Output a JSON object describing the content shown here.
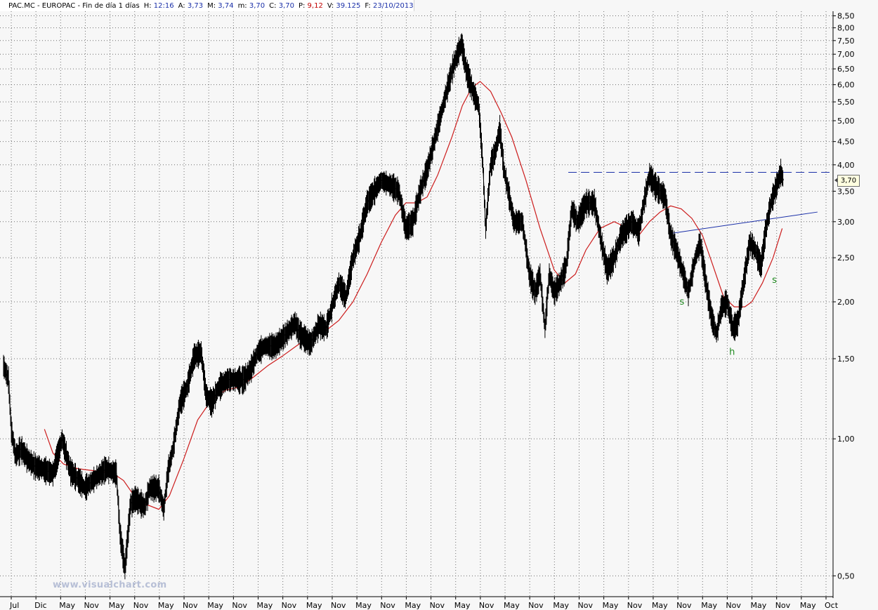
{
  "header": {
    "symbol": "PAC.MC - EUROPAC - Fin de día 1 días",
    "fields": [
      {
        "label": "H:",
        "value": "12:16",
        "color": "blue"
      },
      {
        "label": "A:",
        "value": "3,73",
        "color": "blue"
      },
      {
        "label": "M:",
        "value": "3,74",
        "color": "blue"
      },
      {
        "label": "m:",
        "value": "3,70",
        "color": "blue"
      },
      {
        "label": "C:",
        "value": "3,70",
        "color": "blue"
      },
      {
        "label": "P:",
        "value": "9,12",
        "color": "red"
      },
      {
        "label": "V:",
        "value": "39.125",
        "color": "blue"
      },
      {
        "label": "F:",
        "value": "23/10/2013",
        "color": "blue"
      }
    ]
  },
  "watermark": "www.visualchart.com",
  "last_price_label": "3,70",
  "colors": {
    "price": "#000000",
    "moving_average": "#cc1c1c",
    "resistance_line": "#1a2fa8",
    "neckline": "#1a2fa8",
    "pattern_labels": "#1f8a1f",
    "grid": "#6f6f6f"
  },
  "chart_data": {
    "type": "line",
    "log_scale": true,
    "grid": true,
    "ylim": [
      0.45,
      8.7
    ],
    "xlim": [
      0,
      1180
    ],
    "y_ticks": [
      {
        "label": "8,50",
        "value": 8.5
      },
      {
        "label": "8,00",
        "value": 8.0
      },
      {
        "label": "7,50",
        "value": 7.5
      },
      {
        "label": "7,00",
        "value": 7.0
      },
      {
        "label": "6,50",
        "value": 6.5
      },
      {
        "label": "6,00",
        "value": 6.0
      },
      {
        "label": "5,50",
        "value": 5.5
      },
      {
        "label": "5,00",
        "value": 5.0
      },
      {
        "label": "4,50",
        "value": 4.5
      },
      {
        "label": "4,00",
        "value": 4.0
      },
      {
        "label": "3,50",
        "value": 3.5
      },
      {
        "label": "3,00",
        "value": 3.0
      },
      {
        "label": "2,50",
        "value": 2.5
      },
      {
        "label": "2,00",
        "value": 2.0
      },
      {
        "label": "1,50",
        "value": 1.5
      },
      {
        "label": "1,00",
        "value": 1.0
      },
      {
        "label": "0,50",
        "value": 0.5
      }
    ],
    "x_ticks": [
      "Jul",
      "Dic",
      "May",
      "Nov",
      "May",
      "Nov",
      "May",
      "Nov",
      "May",
      "Nov",
      "May",
      "Nov",
      "May",
      "Nov",
      "May",
      "Nov",
      "May",
      "Nov",
      "May",
      "Nov",
      "May",
      "Nov",
      "May",
      "Nov",
      "May",
      "Nov",
      "May",
      "Nov",
      "May",
      "Nov",
      "May",
      "Nov",
      "May",
      "Oct"
    ],
    "series": [
      {
        "role": "price",
        "points": [
          [
            5,
            1.45
          ],
          [
            12,
            1.35
          ],
          [
            16,
            1.05
          ],
          [
            22,
            0.92
          ],
          [
            30,
            0.95
          ],
          [
            40,
            0.9
          ],
          [
            50,
            0.87
          ],
          [
            60,
            0.86
          ],
          [
            75,
            0.84
          ],
          [
            88,
            1.0
          ],
          [
            100,
            0.85
          ],
          [
            115,
            0.8
          ],
          [
            120,
            0.78
          ],
          [
            135,
            0.82
          ],
          [
            150,
            0.86
          ],
          [
            165,
            0.84
          ],
          [
            170,
            0.62
          ],
          [
            177,
            0.52
          ],
          [
            185,
            0.72
          ],
          [
            192,
            0.74
          ],
          [
            205,
            0.71
          ],
          [
            212,
            0.78
          ],
          [
            225,
            0.78
          ],
          [
            232,
            0.7
          ],
          [
            238,
            0.85
          ],
          [
            245,
            0.95
          ],
          [
            255,
            1.2
          ],
          [
            265,
            1.3
          ],
          [
            275,
            1.52
          ],
          [
            285,
            1.55
          ],
          [
            292,
            1.25
          ],
          [
            300,
            1.2
          ],
          [
            310,
            1.3
          ],
          [
            322,
            1.35
          ],
          [
            335,
            1.35
          ],
          [
            345,
            1.35
          ],
          [
            355,
            1.42
          ],
          [
            365,
            1.55
          ],
          [
            375,
            1.6
          ],
          [
            390,
            1.6
          ],
          [
            405,
            1.7
          ],
          [
            418,
            1.8
          ],
          [
            425,
            1.7
          ],
          [
            440,
            1.62
          ],
          [
            452,
            1.78
          ],
          [
            462,
            1.75
          ],
          [
            472,
            2.0
          ],
          [
            480,
            2.2
          ],
          [
            490,
            2.05
          ],
          [
            500,
            2.5
          ],
          [
            510,
            2.8
          ],
          [
            520,
            3.3
          ],
          [
            530,
            3.5
          ],
          [
            540,
            3.7
          ],
          [
            555,
            3.6
          ],
          [
            565,
            3.5
          ],
          [
            575,
            2.9
          ],
          [
            585,
            3.0
          ],
          [
            595,
            3.5
          ],
          [
            605,
            3.9
          ],
          [
            615,
            4.5
          ],
          [
            625,
            5.2
          ],
          [
            635,
            6.0
          ],
          [
            642,
            6.6
          ],
          [
            648,
            7.0
          ],
          [
            654,
            7.4
          ],
          [
            660,
            6.5
          ],
          [
            670,
            5.8
          ],
          [
            678,
            5.4
          ],
          [
            684,
            4.0
          ],
          [
            688,
            2.9
          ],
          [
            695,
            4.0
          ],
          [
            702,
            4.3
          ],
          [
            708,
            4.8
          ],
          [
            714,
            3.9
          ],
          [
            720,
            3.5
          ],
          [
            728,
            3.0
          ],
          [
            740,
            3.0
          ],
          [
            750,
            2.3
          ],
          [
            758,
            2.1
          ],
          [
            765,
            2.3
          ],
          [
            772,
            1.75
          ],
          [
            778,
            2.3
          ],
          [
            785,
            2.1
          ],
          [
            793,
            2.2
          ],
          [
            802,
            2.4
          ],
          [
            810,
            3.2
          ],
          [
            818,
            3.0
          ],
          [
            830,
            3.3
          ],
          [
            842,
            3.3
          ],
          [
            852,
            2.7
          ],
          [
            860,
            2.35
          ],
          [
            870,
            2.5
          ],
          [
            880,
            2.8
          ],
          [
            895,
            3.0
          ],
          [
            905,
            2.85
          ],
          [
            912,
            3.3
          ],
          [
            920,
            3.8
          ],
          [
            928,
            3.6
          ],
          [
            935,
            3.5
          ],
          [
            942,
            3.4
          ],
          [
            950,
            2.8
          ],
          [
            958,
            2.6
          ],
          [
            968,
            2.3
          ],
          [
            975,
            2.1
          ],
          [
            985,
            2.5
          ],
          [
            992,
            2.7
          ],
          [
            1000,
            2.2
          ],
          [
            1008,
            1.85
          ],
          [
            1015,
            1.7
          ],
          [
            1022,
            1.95
          ],
          [
            1030,
            2.0
          ],
          [
            1038,
            1.75
          ],
          [
            1045,
            1.8
          ],
          [
            1055,
            2.3
          ],
          [
            1062,
            2.7
          ],
          [
            1070,
            2.6
          ],
          [
            1078,
            2.4
          ],
          [
            1085,
            2.9
          ],
          [
            1092,
            3.3
          ],
          [
            1100,
            3.6
          ],
          [
            1106,
            3.85
          ],
          [
            1110,
            3.7
          ]
        ]
      },
      {
        "role": "moving_average",
        "points": [
          [
            63,
            1.05
          ],
          [
            75,
            0.93
          ],
          [
            90,
            0.88
          ],
          [
            110,
            0.86
          ],
          [
            135,
            0.85
          ],
          [
            160,
            0.84
          ],
          [
            175,
            0.81
          ],
          [
            190,
            0.75
          ],
          [
            205,
            0.72
          ],
          [
            225,
            0.7
          ],
          [
            240,
            0.75
          ],
          [
            260,
            0.9
          ],
          [
            280,
            1.1
          ],
          [
            300,
            1.22
          ],
          [
            320,
            1.28
          ],
          [
            340,
            1.3
          ],
          [
            360,
            1.37
          ],
          [
            380,
            1.45
          ],
          [
            400,
            1.52
          ],
          [
            420,
            1.6
          ],
          [
            440,
            1.68
          ],
          [
            460,
            1.72
          ],
          [
            480,
            1.82
          ],
          [
            500,
            2.0
          ],
          [
            520,
            2.3
          ],
          [
            540,
            2.7
          ],
          [
            560,
            3.1
          ],
          [
            575,
            3.3
          ],
          [
            590,
            3.3
          ],
          [
            605,
            3.4
          ],
          [
            620,
            3.8
          ],
          [
            640,
            4.6
          ],
          [
            655,
            5.4
          ],
          [
            668,
            5.9
          ],
          [
            680,
            6.1
          ],
          [
            695,
            5.8
          ],
          [
            710,
            5.2
          ],
          [
            725,
            4.6
          ],
          [
            745,
            3.7
          ],
          [
            765,
            2.9
          ],
          [
            785,
            2.35
          ],
          [
            800,
            2.2
          ],
          [
            815,
            2.3
          ],
          [
            830,
            2.6
          ],
          [
            850,
            2.9
          ],
          [
            870,
            3.0
          ],
          [
            890,
            2.9
          ],
          [
            905,
            2.8
          ],
          [
            920,
            3.0
          ],
          [
            935,
            3.15
          ],
          [
            950,
            3.25
          ],
          [
            965,
            3.2
          ],
          [
            980,
            3.05
          ],
          [
            995,
            2.8
          ],
          [
            1010,
            2.4
          ],
          [
            1025,
            2.05
          ],
          [
            1040,
            1.95
          ],
          [
            1055,
            1.95
          ],
          [
            1065,
            2.0
          ],
          [
            1080,
            2.2
          ],
          [
            1095,
            2.5
          ],
          [
            1108,
            2.9
          ]
        ]
      },
      {
        "role": "resistance_line",
        "value": 3.85,
        "x_start": 805,
        "x_end": 1175
      },
      {
        "role": "neckline",
        "points": [
          [
            952,
            2.83
          ],
          [
            1158,
            3.15
          ]
        ]
      }
    ],
    "annotations": [
      {
        "text": "s",
        "x": 966,
        "y": 1.97
      },
      {
        "text": "h",
        "x": 1037,
        "y": 1.53
      },
      {
        "text": "s",
        "x": 1097,
        "y": 2.2
      }
    ]
  }
}
